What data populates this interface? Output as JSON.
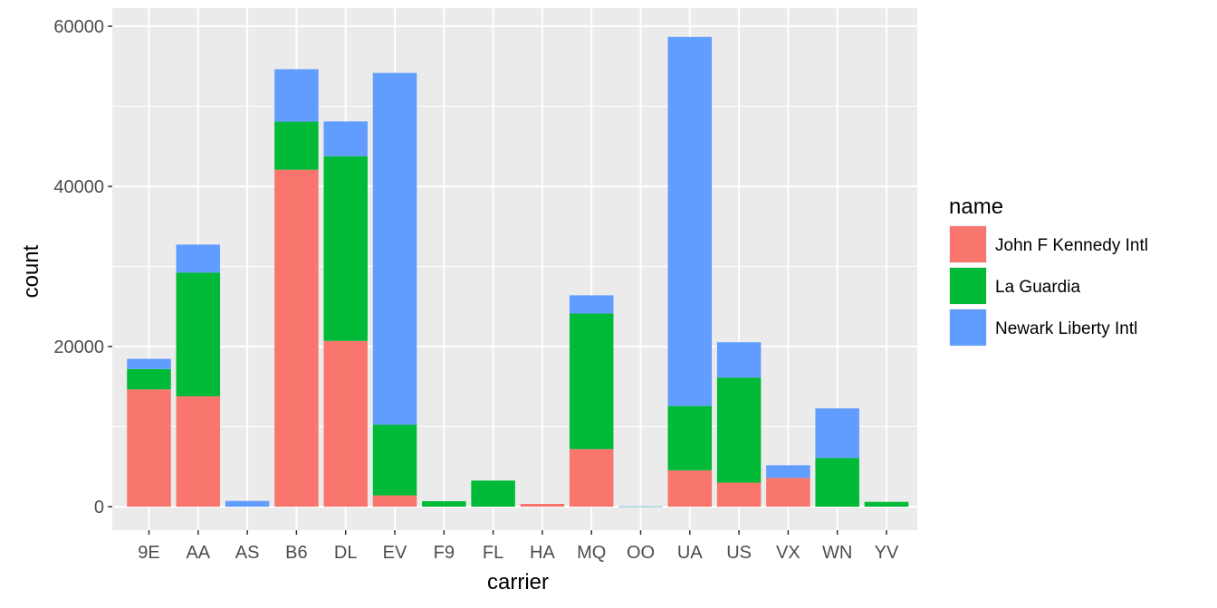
{
  "chart_data": {
    "type": "bar",
    "stacked": true,
    "xlabel": "carrier",
    "ylabel": "count",
    "ylim": [
      0,
      60000
    ],
    "yticks": [
      0,
      20000,
      40000,
      60000
    ],
    "ytick_labels": [
      "0",
      "20000",
      "40000",
      "60000"
    ],
    "grid": true,
    "legend": {
      "title": "name",
      "placement": "right"
    },
    "categories": [
      "9E",
      "AA",
      "AS",
      "B6",
      "DL",
      "EV",
      "F9",
      "FL",
      "HA",
      "MQ",
      "OO",
      "UA",
      "US",
      "VX",
      "WN",
      "YV"
    ],
    "series": [
      {
        "name": "John F Kennedy Intl",
        "color": "#F8766D",
        "values": [
          14651,
          13783,
          0,
          42076,
          20701,
          1408,
          0,
          0,
          342,
          7193,
          0,
          4534,
          2995,
          3596,
          0,
          0
        ]
      },
      {
        "name": "La Guardia",
        "color": "#00BA38",
        "values": [
          2541,
          15459,
          0,
          6002,
          23067,
          8826,
          685,
          3260,
          0,
          16928,
          26,
          8044,
          13136,
          0,
          6087,
          601
        ]
      },
      {
        "name": "Newark Liberty Intl",
        "color": "#619CFF",
        "values": [
          1268,
          3487,
          714,
          6557,
          4342,
          43939,
          0,
          0,
          0,
          2276,
          6,
          46087,
          4405,
          1566,
          6188,
          0
        ]
      }
    ]
  }
}
